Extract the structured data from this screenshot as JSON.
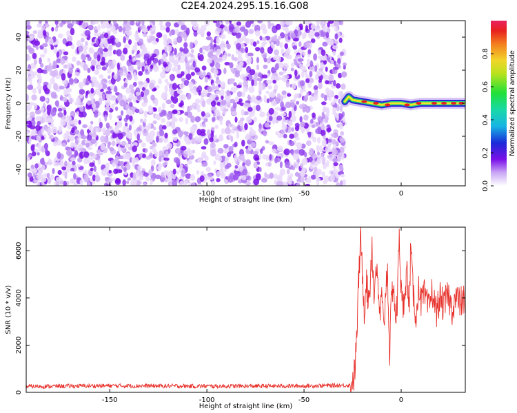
{
  "title": "C2E4.2024.295.15.16.G08",
  "colors": {
    "noise_purple": "#7a10e8",
    "snr_line": "#e8322c",
    "axis": "#000000"
  },
  "chart_data": [
    {
      "type": "heatmap",
      "xlabel": "Height of straight line (km)",
      "ylabel": "Frequency (Hz)",
      "xlim": [
        -193,
        33
      ],
      "ylim": [
        -50,
        50
      ],
      "xticks": [
        -150,
        -100,
        -50,
        0
      ],
      "yticks": [
        -40,
        -20,
        0,
        20,
        40
      ],
      "noise_region_x": [
        -193,
        -29
      ],
      "signal_trace": {
        "x": [
          -29,
          -27,
          -25,
          -20,
          -15,
          -10,
          -5,
          0,
          5,
          10,
          15,
          20,
          25,
          30,
          33
        ],
        "y": [
          1,
          4,
          2,
          1,
          0,
          -1,
          0,
          0,
          -1,
          0,
          0,
          0,
          0,
          0,
          0
        ]
      },
      "colorbar": {
        "label": "Normalized spectral amplitude",
        "ticks": [
          "0.0",
          "0.2",
          "0.4",
          "0.6",
          "0.8"
        ],
        "range": [
          0,
          1
        ]
      }
    },
    {
      "type": "line",
      "xlabel": "Height of straight line (km)",
      "ylabel": "SNR (10 * v/v)",
      "xlim": [
        -193,
        33
      ],
      "ylim": [
        0,
        7000
      ],
      "xticks": [
        -150,
        -100,
        -50,
        0
      ],
      "yticks": [
        0,
        2000,
        4000,
        6000
      ],
      "series": [
        {
          "x": [
            -193,
            -150,
            -100,
            -50,
            -26,
            -24,
            -23,
            -22,
            -21,
            -20,
            -19,
            -18,
            -17,
            -16,
            -15,
            -14,
            -13,
            -12,
            -11,
            -10,
            -9,
            -8,
            -7,
            -6,
            -5,
            -4,
            -3,
            -2,
            -1,
            0,
            1,
            2,
            3,
            4,
            5,
            6,
            7,
            8,
            9,
            10,
            12,
            14,
            16,
            18,
            20,
            22,
            24,
            26,
            28,
            30,
            33
          ],
          "y": [
            250,
            280,
            260,
            270,
            300,
            800,
            2100,
            4500,
            6400,
            5200,
            3500,
            4800,
            3900,
            4600,
            6400,
            3800,
            5600,
            4300,
            3300,
            4000,
            2600,
            4400,
            5200,
            1600,
            3800,
            4800,
            3100,
            3700,
            6900,
            4200,
            3400,
            4600,
            5100,
            3500,
            6200,
            4300,
            3700,
            3100,
            4800,
            3800,
            4100,
            3500,
            4300,
            3400,
            4000,
            3600,
            4200,
            3500,
            4000,
            3800,
            3900
          ]
        }
      ]
    }
  ]
}
